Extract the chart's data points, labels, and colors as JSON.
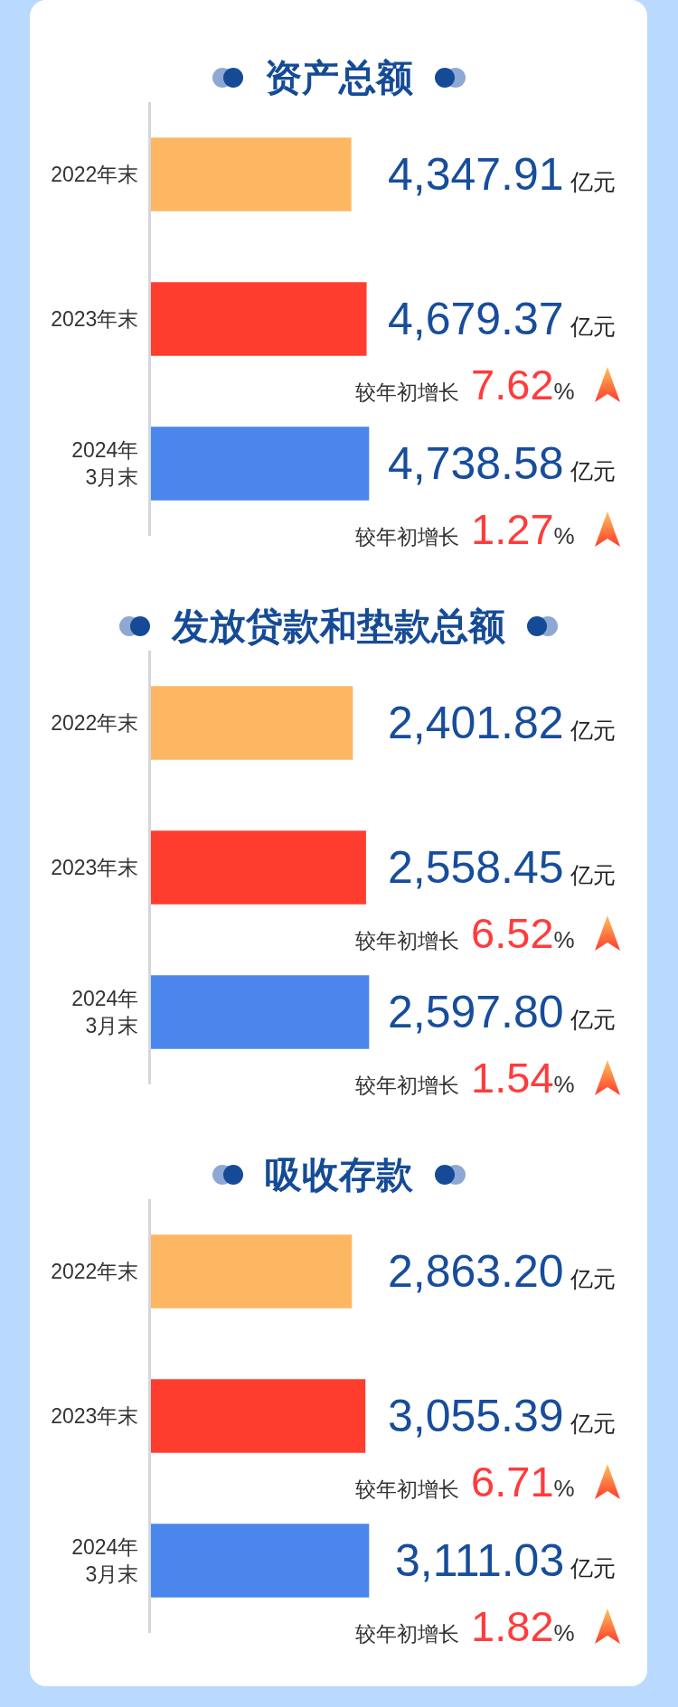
{
  "chart_data": [
    {
      "type": "bar",
      "orientation": "horizontal",
      "title": "资产总额",
      "categories": [
        "2022年末",
        "2023年末",
        "2024年\n3月末"
      ],
      "values": [
        4347.91,
        4679.37,
        4738.58
      ],
      "colors": [
        "#fdb763",
        "#ff3d2e",
        "#4a86ec"
      ],
      "value_labels": [
        "4,347.91亿元",
        "4,679.37亿元",
        "4,738.58亿元"
      ],
      "annotations": [
        "较年初增长7.62%",
        "较年初增长1.27%"
      ],
      "tick_labels": "y"
    },
    {
      "type": "bar",
      "orientation": "horizontal",
      "title": "发放贷款和垫款总额",
      "categories": [
        "2022年末",
        "2023年末",
        "2024年\n3月末"
      ],
      "values": [
        2401.82,
        2558.45,
        2597.8
      ],
      "colors": [
        "#fdb763",
        "#ff3d2e",
        "#4a86ec"
      ],
      "value_labels": [
        "2,401.82亿元",
        "2,558.45亿元",
        "2,597.80亿元"
      ],
      "annotations": [
        "较年初增长6.52%",
        "较年初增长1.54%"
      ],
      "tick_labels": "y"
    },
    {
      "type": "bar",
      "orientation": "horizontal",
      "title": "吸收存款",
      "categories": [
        "2022年末",
        "2023年末",
        "2024年\n3月末"
      ],
      "values": [
        2863.2,
        3055.39,
        3111.03
      ],
      "colors": [
        "#fdb763",
        "#ff3d2e",
        "#4a86ec"
      ],
      "value_labels": [
        "2,863.20亿元",
        "3,055.39亿元",
        "3,111.03亿元"
      ],
      "annotations": [
        "较年初增长6.71%",
        "较年初增长1.82%"
      ],
      "tick_labels": "y"
    }
  ]
}
